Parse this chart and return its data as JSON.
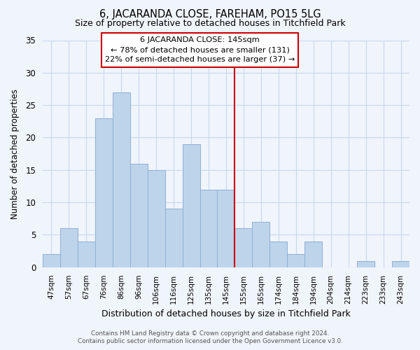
{
  "title": "6, JACARANDA CLOSE, FAREHAM, PO15 5LG",
  "subtitle": "Size of property relative to detached houses in Titchfield Park",
  "xlabel": "Distribution of detached houses by size in Titchfield Park",
  "ylabel": "Number of detached properties",
  "bar_labels": [
    "47sqm",
    "57sqm",
    "67sqm",
    "76sqm",
    "86sqm",
    "96sqm",
    "106sqm",
    "116sqm",
    "125sqm",
    "135sqm",
    "145sqm",
    "155sqm",
    "165sqm",
    "174sqm",
    "184sqm",
    "194sqm",
    "204sqm",
    "214sqm",
    "223sqm",
    "233sqm",
    "243sqm"
  ],
  "bar_values": [
    2,
    6,
    4,
    23,
    27,
    16,
    15,
    9,
    19,
    12,
    12,
    6,
    7,
    4,
    2,
    4,
    0,
    0,
    1,
    0,
    1
  ],
  "bar_color": "#bdd4eb",
  "bar_edge_color": "#8fb0d4",
  "reference_line_color": "#cc0000",
  "annotation_title": "6 JACARANDA CLOSE: 145sqm",
  "annotation_line1": "← 78% of detached houses are smaller (131)",
  "annotation_line2": "22% of semi-detached houses are larger (37) →",
  "annotation_box_color": "#ffffff",
  "annotation_box_edge": "#cc0000",
  "ylim": [
    0,
    35
  ],
  "yticks": [
    0,
    5,
    10,
    15,
    20,
    25,
    30,
    35
  ],
  "footer_line1": "Contains HM Land Registry data © Crown copyright and database right 2024.",
  "footer_line2": "Contains public sector information licensed under the Open Government Licence v3.0.",
  "bg_color": "#f0f4fb",
  "grid_color": "#c8d8ec"
}
